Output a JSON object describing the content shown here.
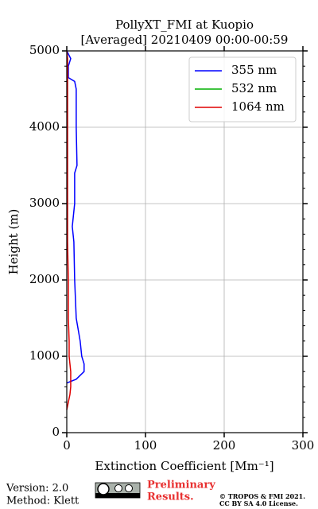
{
  "chart_data": {
    "type": "line",
    "title": [
      "PollyXT_FMI at Kuopio",
      "[Averaged] 20210409 00:00-00:59"
    ],
    "xlabel": "Extinction Coefficient [Mm⁻¹]",
    "ylabel": "Height (m)",
    "y": [
      300,
      400,
      500,
      600,
      650,
      700,
      800,
      900,
      1000,
      1200,
      1500,
      2000,
      2500,
      2700,
      3000,
      3400,
      3500,
      4000,
      4500,
      4600,
      4650,
      4800,
      4900,
      5000
    ],
    "series": [
      {
        "name": "355 nm",
        "color": "#0000ff",
        "values": [
          null,
          null,
          null,
          null,
          0,
          12,
          22,
          22,
          19,
          17,
          12,
          10,
          9,
          7,
          10,
          10,
          13,
          12,
          12,
          10,
          2,
          2,
          5,
          0
        ]
      },
      {
        "name": "532 nm",
        "color": "#00b000",
        "values": [
          null,
          null,
          null,
          null,
          null,
          null,
          null,
          null,
          null,
          null,
          null,
          null,
          null,
          null,
          null,
          null,
          null,
          null,
          null,
          null,
          null,
          null,
          null,
          null
        ]
      },
      {
        "name": "1064 nm",
        "color": "#e00000",
        "values": [
          0,
          2,
          4,
          5,
          5,
          5,
          5,
          4,
          3,
          3,
          2,
          2,
          1,
          1,
          1,
          1,
          1,
          1,
          1,
          1,
          1,
          1,
          1,
          0
        ]
      }
    ],
    "xlim": [
      0,
      300
    ],
    "xticks": [
      0,
      100,
      200,
      300
    ],
    "ylim": [
      0,
      5000
    ],
    "yticks": [
      0,
      1000,
      2000,
      3000,
      4000,
      5000
    ],
    "grid": true,
    "legend": "upper right",
    "footer": {
      "version": "Version: 2.0",
      "method": "Method: Klett",
      "preliminary": [
        "Preliminary",
        "Results."
      ],
      "copyright": [
        "© TROPOS & FMI 2021.",
        "CC BY SA 4.0 License."
      ]
    }
  }
}
